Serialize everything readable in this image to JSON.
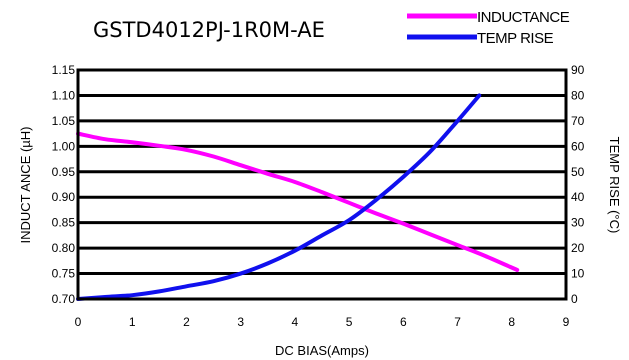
{
  "chart_data": {
    "type": "line",
    "title": "GSTD4012PJ-1R0M-AE",
    "xlabel": "DC BIAS(Amps)",
    "ylabel": "INDUCT ANCE (µH)",
    "y2label": "TEMP RISE (°C)",
    "xlim": [
      0,
      9
    ],
    "ylim": [
      0.7,
      1.15
    ],
    "y2lim": [
      0,
      90
    ],
    "x_ticks": [
      "0",
      "1",
      "2",
      "3",
      "4",
      "5",
      "6",
      "7",
      "8",
      "9"
    ],
    "y_ticks": [
      "0.70",
      "0.75",
      "0.80",
      "0.85",
      "0.90",
      "0.95",
      "1.00",
      "1.05",
      "1.10",
      "1.15"
    ],
    "y2_ticks": [
      "0",
      "10",
      "20",
      "30",
      "40",
      "50",
      "60",
      "70",
      "80",
      "90"
    ],
    "grid": "horizontal",
    "legend_position": "top-right",
    "series": [
      {
        "name": "INDUCTANCE",
        "axis": "left",
        "color": "#ff00ff",
        "x": [
          0,
          0.5,
          1,
          1.5,
          2,
          2.5,
          3,
          3.5,
          4,
          4.5,
          5,
          5.5,
          6,
          6.5,
          7,
          7.5,
          8.1
        ],
        "y": [
          1.025,
          1.014,
          1.008,
          1.001,
          0.993,
          0.98,
          0.963,
          0.946,
          0.93,
          0.91,
          0.889,
          0.868,
          0.848,
          0.827,
          0.806,
          0.785,
          0.757
        ]
      },
      {
        "name": "TEMP RISE",
        "axis": "right",
        "color": "#1010ee",
        "x": [
          0,
          0.5,
          1,
          1.5,
          2,
          2.5,
          3,
          3.5,
          4,
          4.5,
          5,
          5.5,
          6,
          6.5,
          7,
          7.4
        ],
        "y": [
          0,
          0.8,
          1.5,
          3,
          5,
          7,
          10,
          14,
          19,
          25,
          31,
          39,
          48,
          58,
          70,
          80
        ]
      }
    ]
  }
}
